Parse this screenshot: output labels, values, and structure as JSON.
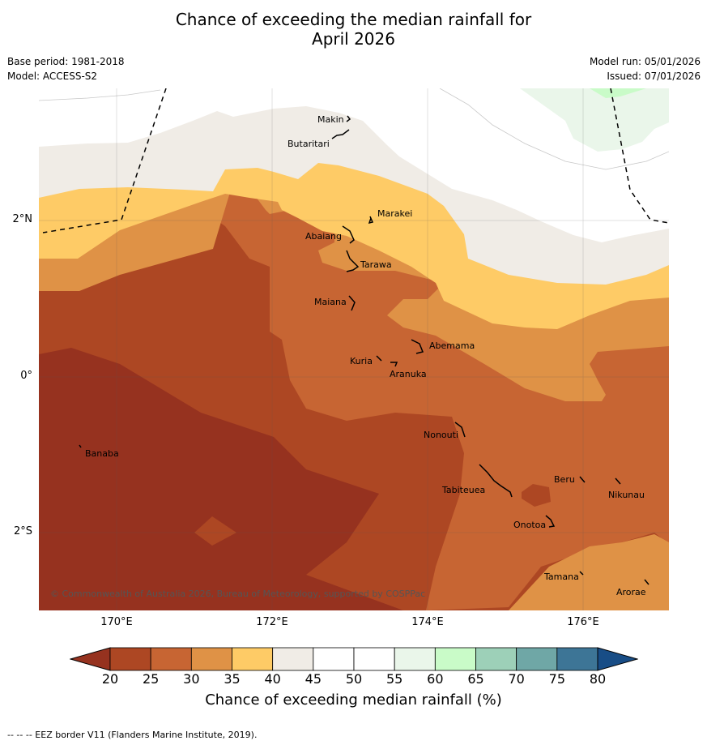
{
  "title_line1": "Chance of exceeding the median rainfall for",
  "title_line2": "April 2026",
  "base_period": "Base period: 1981-2018",
  "model": "Model: ACCESS-S2",
  "model_run": "Model run: 05/01/2026",
  "issued": "Issued: 07/01/2026",
  "lat_labels": [
    "2°N",
    "0°",
    "2°S"
  ],
  "lon_labels": [
    "170°E",
    "172°E",
    "174°E",
    "176°E"
  ],
  "places": {
    "makin": "Makin",
    "butaritari": "Butaritari",
    "marakei": "Marakei",
    "abaiang": "Abaiang",
    "tarawa": "Tarawa",
    "maiana": "Maiana",
    "abemama": "Abemama",
    "kuria": "Kuria",
    "aranuka": "Aranuka",
    "banaba": "Banaba",
    "nonouti": "Nonouti",
    "tabiteuea": "Tabiteuea",
    "beru": "Beru",
    "nikunau": "Nikunau",
    "onotoa": "Onotoa",
    "tamana": "Tamana",
    "arorae": "Arorae"
  },
  "copyright": "© Commonwealth of Australia 2026, Bureau of Meteorology, supported by COSPPac",
  "colorbar": {
    "ticks": [
      "20",
      "25",
      "30",
      "35",
      "40",
      "45",
      "50",
      "55",
      "60",
      "65",
      "70",
      "75",
      "80"
    ],
    "colors": [
      "#ad4723",
      "#c76533",
      "#df9246",
      "#fecb66",
      "#f0ece6",
      "#ffffff",
      "#ffffff",
      "#eaf6ea",
      "#c9fbc8",
      "#9dd0b8",
      "#6fa7a6",
      "#3d7596"
    ],
    "under_color": "#96321f",
    "over_color": "#184d86",
    "label": "Chance of exceeding median rainfall (%)"
  },
  "footer": "-- -- -- EEZ border V11 (Flanders Marine Institute, 2019)."
}
